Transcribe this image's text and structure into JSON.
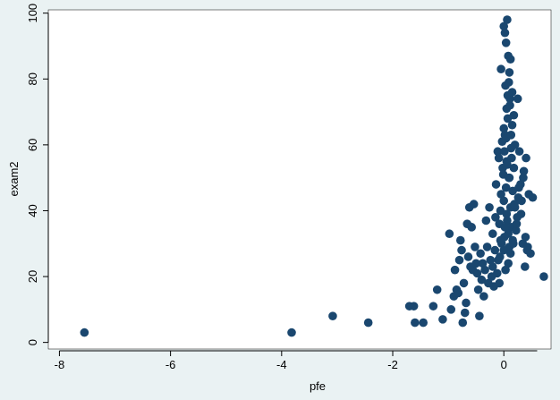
{
  "chart_data": {
    "type": "scatter",
    "title": "",
    "xlabel": "pfe",
    "ylabel": "exam2",
    "xlim": [
      -8.2,
      0.85
    ],
    "ylim": [
      -2,
      101
    ],
    "xticks": [
      -8,
      -6,
      -4,
      -2,
      0
    ],
    "yticks": [
      0,
      20,
      40,
      60,
      80,
      100
    ],
    "xtick_labels": [
      "-8",
      "-6",
      "-4",
      "-2",
      "0"
    ],
    "ytick_labels": [
      "0",
      "20",
      "40",
      "60",
      "80",
      "100"
    ],
    "grid": false,
    "legend": "none",
    "colors": {
      "marker": "#1a476f",
      "plot_bg": "#ffffff",
      "outer_bg": "#eaf2f3"
    },
    "points": [
      [
        -7.55,
        3
      ],
      [
        -3.82,
        3
      ],
      [
        -3.08,
        8
      ],
      [
        -2.44,
        6
      ],
      [
        -1.7,
        11
      ],
      [
        -1.62,
        11
      ],
      [
        -1.6,
        6
      ],
      [
        -1.45,
        6
      ],
      [
        -1.27,
        11
      ],
      [
        -1.2,
        16
      ],
      [
        -1.1,
        7
      ],
      [
        -0.98,
        33
      ],
      [
        -0.95,
        10
      ],
      [
        -0.9,
        14
      ],
      [
        -0.88,
        22
      ],
      [
        -0.85,
        16
      ],
      [
        -0.82,
        15
      ],
      [
        -0.8,
        25
      ],
      [
        -0.78,
        31
      ],
      [
        -0.76,
        28
      ],
      [
        -0.74,
        6
      ],
      [
        -0.72,
        18
      ],
      [
        -0.7,
        9
      ],
      [
        -0.68,
        12
      ],
      [
        -0.66,
        36
      ],
      [
        -0.64,
        26
      ],
      [
        -0.62,
        41
      ],
      [
        -0.6,
        23
      ],
      [
        -0.58,
        35
      ],
      [
        -0.56,
        22
      ],
      [
        -0.54,
        42
      ],
      [
        -0.52,
        29
      ],
      [
        -0.5,
        24
      ],
      [
        -0.48,
        21
      ],
      [
        -0.46,
        16
      ],
      [
        -0.44,
        8
      ],
      [
        -0.42,
        27
      ],
      [
        -0.4,
        19
      ],
      [
        -0.38,
        24
      ],
      [
        -0.36,
        14
      ],
      [
        -0.34,
        22
      ],
      [
        -0.32,
        37
      ],
      [
        -0.3,
        29
      ],
      [
        -0.28,
        18
      ],
      [
        -0.26,
        41
      ],
      [
        -0.24,
        25
      ],
      [
        -0.22,
        20
      ],
      [
        -0.2,
        23
      ],
      [
        -0.18,
        17
      ],
      [
        -0.16,
        28
      ],
      [
        -0.14,
        48
      ],
      [
        -0.12,
        21
      ],
      [
        -0.1,
        25
      ],
      [
        -0.08,
        18
      ],
      [
        -0.06,
        40
      ],
      [
        -0.04,
        30
      ],
      [
        -0.02,
        53
      ],
      [
        -0.2,
        33
      ],
      [
        -0.15,
        38
      ],
      [
        -0.11,
        58
      ],
      [
        -0.09,
        56
      ],
      [
        -0.07,
        26
      ],
      [
        -0.05,
        45
      ],
      [
        -0.03,
        61
      ],
      [
        -0.01,
        51
      ],
      [
        0,
        43
      ],
      [
        0.01,
        32
      ],
      [
        0.02,
        63
      ],
      [
        0.03,
        22
      ],
      [
        0.04,
        47
      ],
      [
        0.05,
        55
      ],
      [
        0.06,
        37
      ],
      [
        0.07,
        68
      ],
      [
        0.08,
        24
      ],
      [
        0.09,
        50
      ],
      [
        0.1,
        29
      ],
      [
        0.11,
        74
      ],
      [
        0.12,
        41
      ],
      [
        0.13,
        59
      ],
      [
        0.14,
        35
      ],
      [
        0.15,
        66
      ],
      [
        0.16,
        46
      ],
      [
        0.17,
        30
      ],
      [
        0.18,
        53
      ],
      [
        0.2,
        41
      ],
      [
        0.22,
        34
      ],
      [
        0.24,
        38
      ],
      [
        0.26,
        44
      ],
      [
        0.28,
        58
      ],
      [
        0.3,
        48
      ],
      [
        0.32,
        43
      ],
      [
        0.34,
        30
      ],
      [
        0.36,
        52
      ],
      [
        0.38,
        23
      ],
      [
        0.4,
        56
      ],
      [
        0.42,
        28
      ],
      [
        0.45,
        45
      ],
      [
        0.48,
        27
      ],
      [
        0.52,
        44
      ],
      [
        0.72,
        20
      ],
      [
        -0.05,
        83
      ],
      [
        0,
        96
      ],
      [
        0.02,
        94
      ],
      [
        0.04,
        91
      ],
      [
        0.06,
        98
      ],
      [
        0.08,
        87
      ],
      [
        0.1,
        82
      ],
      [
        0.12,
        86
      ],
      [
        0.03,
        78
      ],
      [
        0.07,
        75
      ],
      [
        0.09,
        79
      ],
      [
        0.05,
        71
      ],
      [
        0.11,
        72
      ],
      [
        0.15,
        76
      ],
      [
        0.18,
        69
      ],
      [
        0.25,
        74
      ],
      [
        0.0,
        65
      ],
      [
        0.04,
        62
      ],
      [
        0.13,
        63
      ],
      [
        0.2,
        60
      ],
      [
        0.01,
        58
      ],
      [
        0.06,
        54
      ],
      [
        0.1,
        50
      ],
      [
        0.14,
        56
      ],
      [
        -0.08,
        36
      ],
      [
        -0.06,
        31
      ],
      [
        0.0,
        28
      ],
      [
        0.02,
        35
      ],
      [
        0.05,
        39
      ],
      [
        0.08,
        33
      ],
      [
        0.12,
        27
      ],
      [
        0.16,
        31
      ],
      [
        0.19,
        42
      ],
      [
        0.23,
        36
      ],
      [
        0.27,
        47
      ],
      [
        0.31,
        39
      ],
      [
        0.35,
        50
      ],
      [
        0.39,
        32
      ],
      [
        0.43,
        29
      ]
    ]
  }
}
